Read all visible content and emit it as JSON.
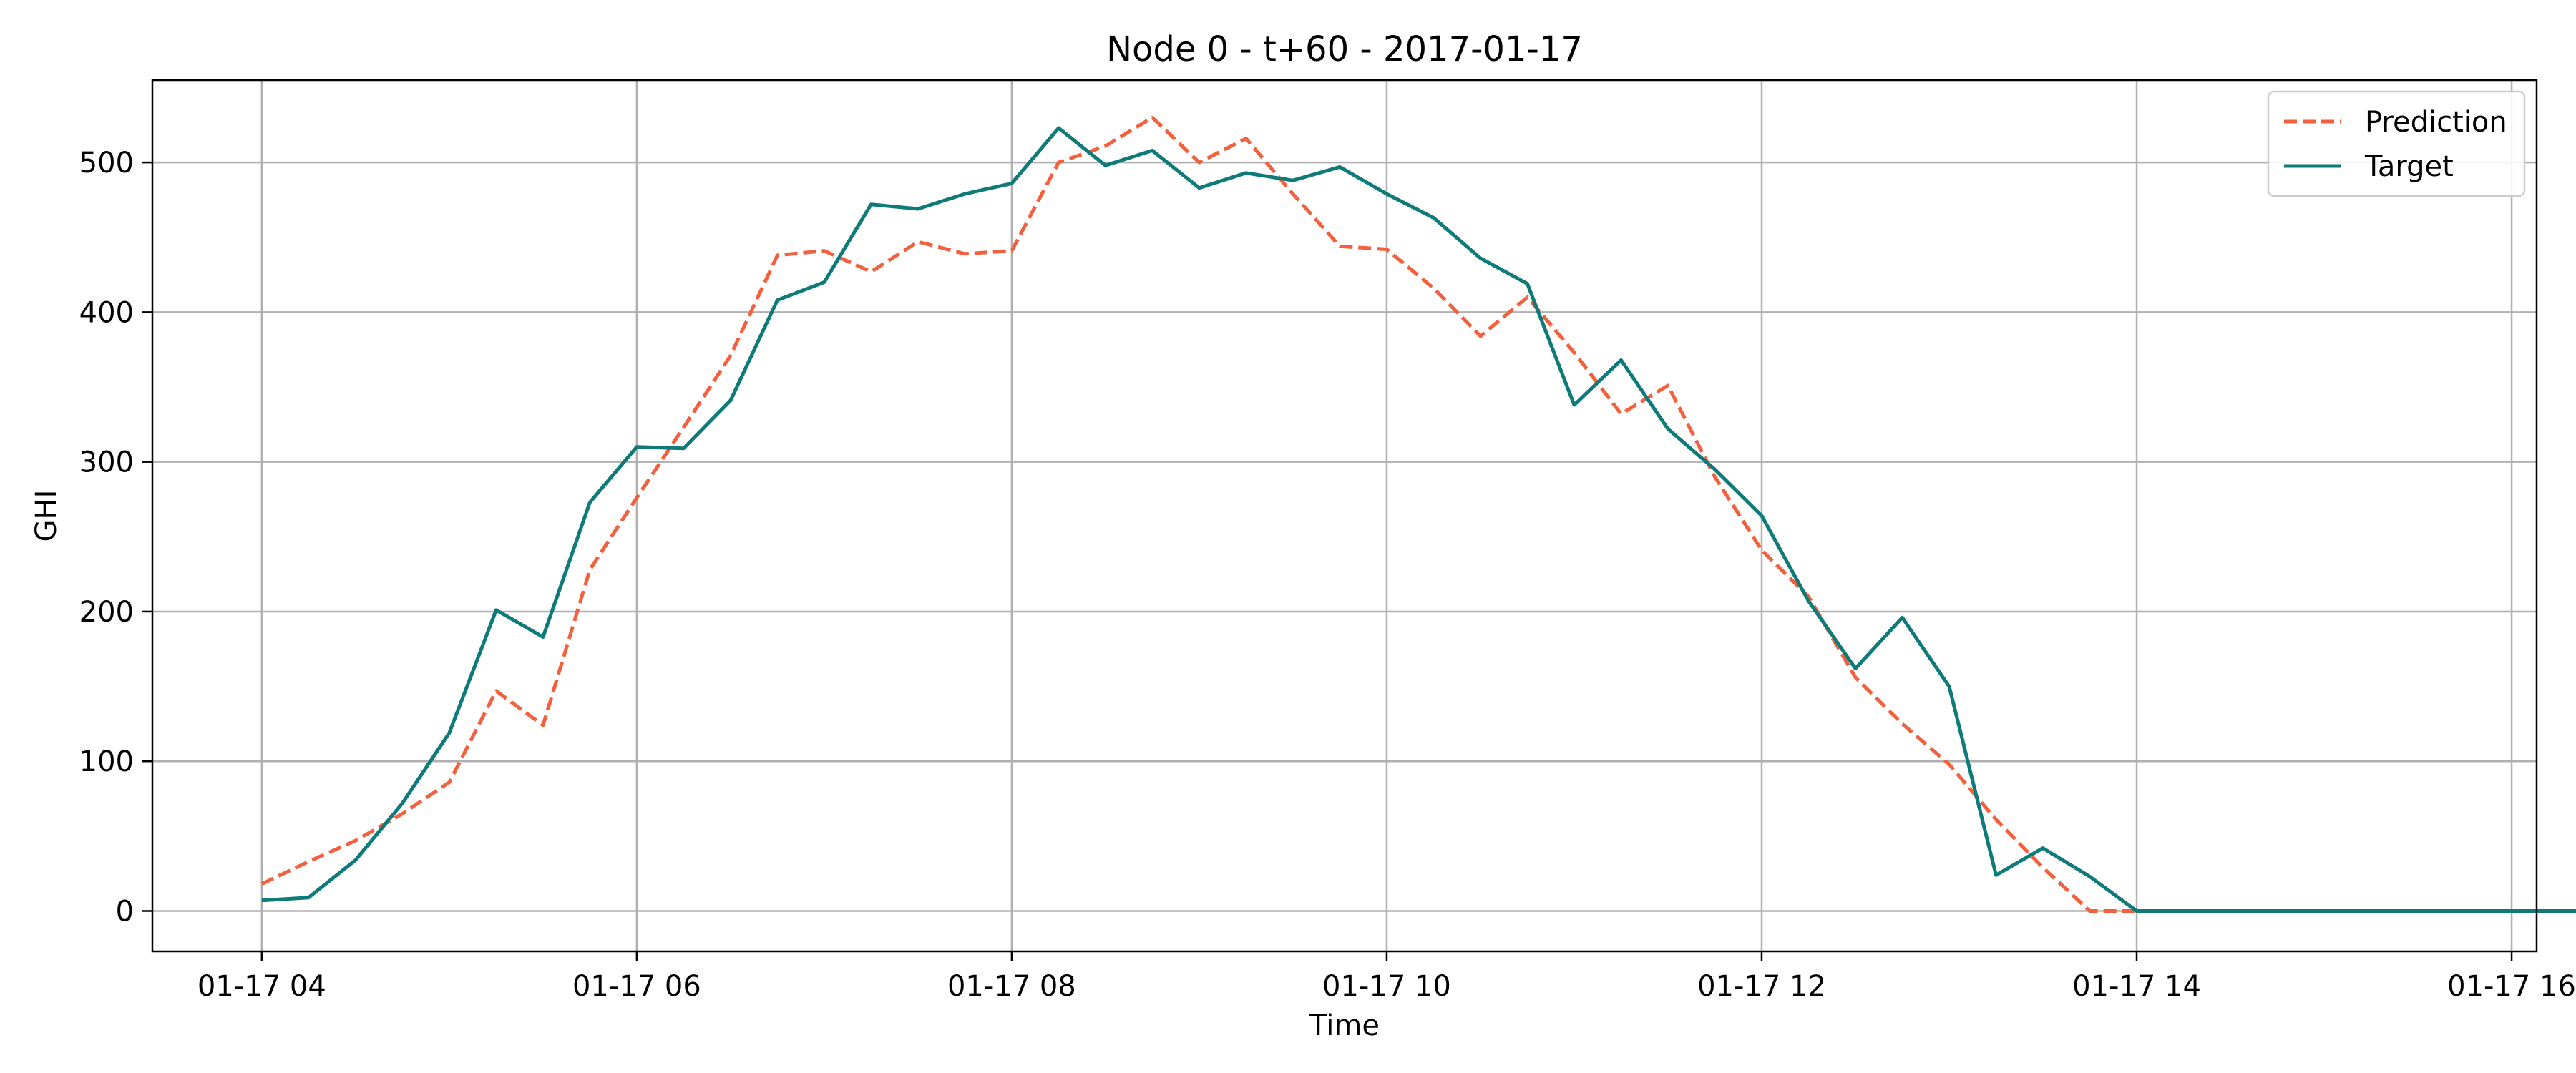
{
  "chart_data": {
    "type": "line",
    "title": "Node 0 - t+60 - 2017-01-17",
    "xlabel": "Time",
    "ylabel": "GHI",
    "x_start": "2017-01-17 04:00",
    "x_step_minutes": 15,
    "xlim": [
      "2017-01-17 03:25",
      "2017-01-17 16:08"
    ],
    "xticks": [
      "2017-01-17 04:00",
      "2017-01-17 06:00",
      "2017-01-17 08:00",
      "2017-01-17 10:00",
      "2017-01-17 12:00",
      "2017-01-17 14:00",
      "2017-01-17 16:00"
    ],
    "xtick_labels": [
      "01-17 04",
      "01-17 06",
      "01-17 08",
      "01-17 10",
      "01-17 12",
      "01-17 14",
      "01-17 16"
    ],
    "ylim": [
      -27,
      555
    ],
    "yticks": [
      0,
      100,
      200,
      300,
      400,
      500
    ],
    "grid": true,
    "legend": "top-right",
    "series": [
      {
        "name": "Prediction",
        "color": "#f2603e",
        "style": "dashed",
        "values": [
          18,
          33,
          47,
          65,
          86,
          147,
          124,
          228,
          276,
          323,
          371,
          438,
          441,
          427,
          447,
          439,
          441,
          500,
          511,
          530,
          500,
          516,
          479,
          444,
          442,
          416,
          384,
          410,
          373,
          332,
          351,
          290,
          241,
          210,
          156,
          125,
          98,
          61,
          29,
          0,
          0,
          0,
          0,
          0,
          0,
          0,
          0,
          0,
          0,
          0,
          0,
          0,
          0
        ]
      },
      {
        "name": "Target",
        "color": "#0f7a7a",
        "style": "solid",
        "values": [
          7,
          9,
          34,
          72,
          119,
          201,
          183,
          273,
          310,
          309,
          341,
          408,
          420,
          472,
          469,
          479,
          486,
          523,
          498,
          508,
          483,
          493,
          488,
          497,
          479,
          463,
          436,
          419,
          338,
          368,
          322,
          295,
          264,
          207,
          162,
          196,
          150,
          24,
          42,
          23,
          0,
          0,
          0,
          0,
          0,
          0,
          0,
          0,
          0,
          0,
          0,
          0,
          0
        ]
      }
    ]
  }
}
